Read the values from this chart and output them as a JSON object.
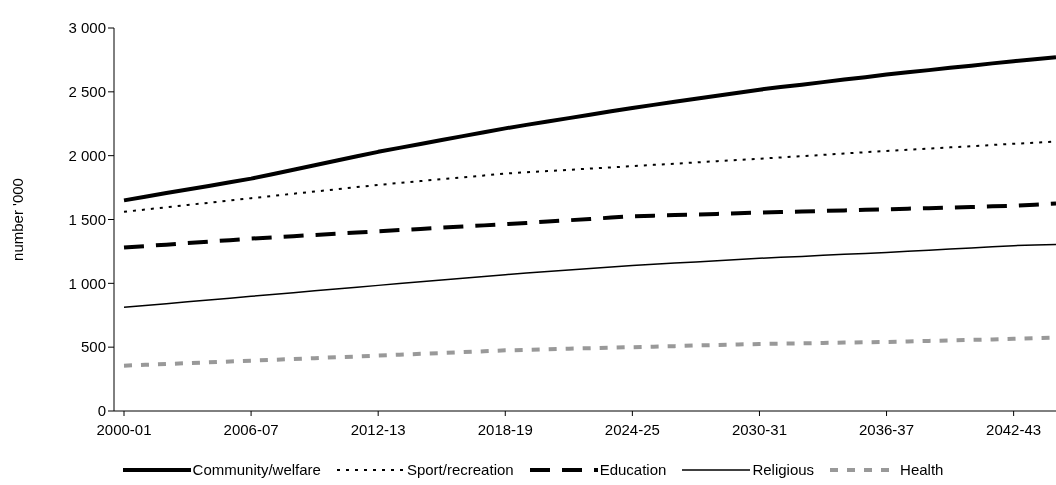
{
  "chart_data": {
    "type": "line",
    "ylabel": "number '000",
    "categories": [
      "2000-01",
      null,
      null,
      null,
      null,
      null,
      "2006-07",
      null,
      null,
      null,
      null,
      null,
      "2012-13",
      null,
      null,
      null,
      null,
      null,
      "2018-19",
      null,
      null,
      null,
      null,
      null,
      "2024-25",
      null,
      null,
      null,
      null,
      null,
      "2030-31",
      null,
      null,
      null,
      null,
      null,
      "2036-37",
      null,
      null,
      null,
      null,
      null,
      "2042-43",
      null,
      null
    ],
    "ylim": [
      0,
      3000
    ],
    "yticks": [
      0,
      500,
      {
        "value": 1000,
        "label": "1 000"
      },
      {
        "value": 1500,
        "label": "1 500"
      },
      {
        "value": 2000,
        "label": "2 000"
      },
      {
        "value": 2500,
        "label": "2 500"
      },
      {
        "value": 3000,
        "label": "3 000"
      }
    ],
    "grid": false,
    "legend": "bottom",
    "marker": "none",
    "series": [
      {
        "name": "Community/welfare",
        "color": "#000000",
        "line_style": "solid",
        "values": [
          1650,
          1678,
          1707,
          1735,
          1763,
          1792,
          1820,
          1855,
          1890,
          1925,
          1960,
          1995,
          2030,
          2061,
          2092,
          2122,
          2153,
          2184,
          2214,
          2241,
          2268,
          2294,
          2321,
          2348,
          2374,
          2398,
          2422,
          2446,
          2469,
          2493,
          2517,
          2537,
          2556,
          2576,
          2596,
          2615,
          2635,
          2653,
          2670,
          2688,
          2705,
          2723,
          2740,
          2755,
          2770
        ]
      },
      {
        "name": "Sport/recreation",
        "color": "#000000",
        "line_style": "dotted",
        "values": [
          1560,
          1578,
          1596,
          1614,
          1631,
          1649,
          1667,
          1684,
          1702,
          1719,
          1736,
          1754,
          1771,
          1786,
          1801,
          1816,
          1830,
          1845,
          1860,
          1870,
          1879,
          1889,
          1899,
          1908,
          1918,
          1928,
          1937,
          1947,
          1957,
          1966,
          1976,
          1986,
          1996,
          2006,
          2017,
          2027,
          2037,
          2046,
          2056,
          2065,
          2074,
          2084,
          2093,
          2102,
          2110
        ]
      },
      {
        "name": "Education",
        "color": "#000000",
        "line_style": "dashed",
        "values": [
          1280,
          1292,
          1303,
          1315,
          1327,
          1338,
          1350,
          1360,
          1369,
          1379,
          1389,
          1398,
          1408,
          1417,
          1426,
          1436,
          1445,
          1454,
          1463,
          1473,
          1484,
          1494,
          1504,
          1515,
          1525,
          1530,
          1535,
          1539,
          1544,
          1549,
          1554,
          1558,
          1563,
          1567,
          1571,
          1576,
          1580,
          1585,
          1589,
          1594,
          1598,
          1603,
          1607,
          1616,
          1625
        ]
      },
      {
        "name": "Religious",
        "color": "#000000",
        "line_style": "solid",
        "values": [
          813,
          827,
          841,
          856,
          870,
          884,
          898,
          912,
          927,
          941,
          955,
          970,
          984,
          998,
          1012,
          1026,
          1040,
          1054,
          1068,
          1080,
          1092,
          1104,
          1116,
          1128,
          1140,
          1149,
          1159,
          1168,
          1177,
          1187,
          1196,
          1204,
          1211,
          1219,
          1227,
          1234,
          1242,
          1251,
          1260,
          1268,
          1277,
          1286,
          1295,
          1300,
          1305
        ]
      },
      {
        "name": "Health",
        "color": "#999999",
        "line_style": "dashed",
        "values": [
          355,
          362,
          368,
          375,
          381,
          388,
          394,
          401,
          407,
          414,
          421,
          427,
          434,
          441,
          448,
          454,
          461,
          468,
          475,
          479,
          483,
          488,
          492,
          496,
          500,
          504,
          508,
          513,
          517,
          521,
          525,
          528,
          530,
          533,
          536,
          538,
          541,
          545,
          549,
          553,
          557,
          561,
          565,
          570,
          575
        ]
      }
    ]
  }
}
